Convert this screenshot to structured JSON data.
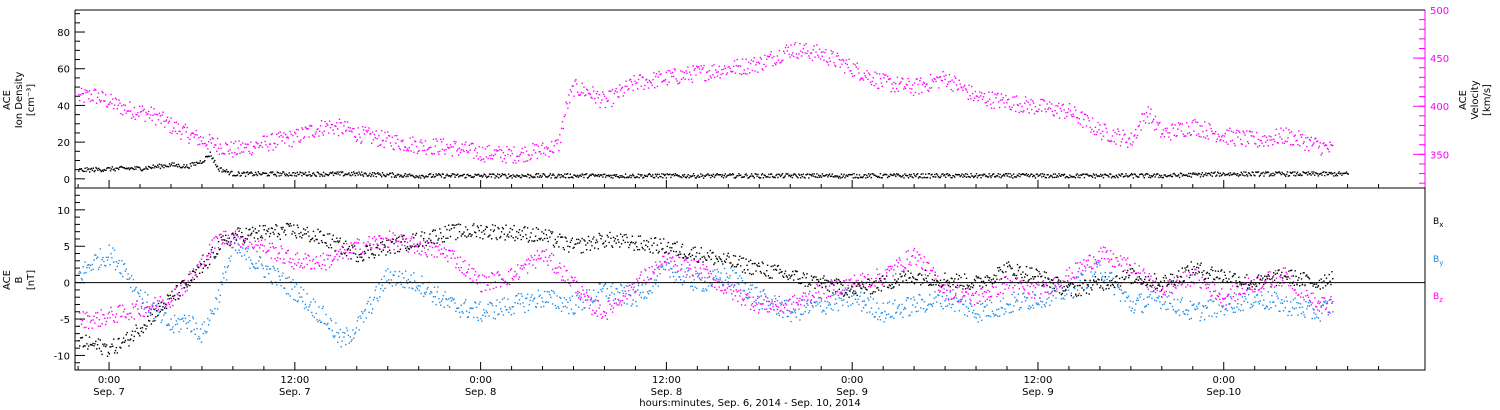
{
  "chart_data": [
    {
      "type": "scatter",
      "panel": "top",
      "ylabel": [
        "ACE",
        "Ion Density",
        "[cm⁻³]"
      ],
      "y2label": [
        "ACE",
        "Velocity",
        "[km/s]"
      ],
      "ylim": [
        -5,
        92
      ],
      "y2lim": [
        315,
        500
      ],
      "yticks": [
        "0",
        "20",
        "40",
        "60",
        "80"
      ],
      "y2ticks": [
        "350",
        "400",
        "450",
        "500"
      ],
      "series": [
        {
          "color": "#000000",
          "axis": "left",
          "x": [
            -2,
            1,
            2,
            3,
            4,
            5,
            6,
            6.5,
            7,
            8,
            9,
            10,
            12,
            16,
            20,
            24,
            28,
            32,
            36,
            40,
            44,
            48,
            52,
            56,
            60,
            64,
            68,
            72,
            76,
            80
          ],
          "y": [
            5,
            6,
            6,
            7,
            8,
            7,
            10,
            14,
            6,
            3,
            3,
            3,
            3,
            3,
            2,
            2,
            2,
            2,
            2,
            2,
            2,
            2,
            2,
            2,
            2,
            2,
            2,
            3,
            3,
            3
          ]
        },
        {
          "color": "#ff00ff",
          "axis": "right",
          "x": [
            -2,
            -1,
            0,
            1,
            2,
            3,
            4,
            5,
            6,
            7,
            8,
            9,
            10,
            12,
            13,
            14,
            15,
            16,
            18,
            20,
            22,
            24,
            26,
            28,
            29,
            29.5,
            30,
            31,
            32,
            34,
            36,
            38,
            40,
            42,
            44,
            46,
            48,
            50,
            52,
            54,
            56,
            58,
            60,
            62,
            64,
            66,
            67,
            68,
            70,
            72,
            74,
            76,
            78,
            79
          ],
          "y": [
            410,
            412,
            405,
            398,
            395,
            390,
            380,
            372,
            365,
            360,
            355,
            358,
            362,
            368,
            375,
            380,
            378,
            372,
            365,
            360,
            358,
            352,
            350,
            355,
            360,
            400,
            420,
            415,
            405,
            425,
            430,
            435,
            440,
            445,
            460,
            455,
            440,
            425,
            420,
            430,
            410,
            405,
            400,
            395,
            375,
            365,
            395,
            372,
            380,
            370,
            365,
            370,
            360,
            355
          ]
        }
      ]
    },
    {
      "type": "scatter",
      "panel": "bottom",
      "ylabel": [
        "ACE",
        "B",
        "[nT]"
      ],
      "ylim": [
        -12,
        13
      ],
      "yticks": [
        "-10",
        "-5",
        "0",
        "5",
        "10"
      ],
      "legend": [
        {
          "label": "B",
          "sub": "x",
          "color": "#000000"
        },
        {
          "label": "B",
          "sub": "y",
          "color": "#1e8ce6"
        },
        {
          "label": "B",
          "sub": "z",
          "color": "#ff00ff"
        }
      ],
      "series": [
        {
          "name": "Bx",
          "color": "#000000",
          "x": [
            -2,
            -1,
            0,
            1,
            2,
            3,
            4,
            5,
            6,
            7,
            8,
            10,
            12,
            14,
            16,
            18,
            20,
            22,
            24,
            26,
            28,
            30,
            32,
            34,
            36,
            38,
            40,
            42,
            44,
            46,
            48,
            50,
            52,
            54,
            56,
            58,
            60,
            62,
            64,
            66,
            68,
            70,
            72,
            74,
            76,
            78,
            79
          ],
          "y": [
            -8,
            -8.5,
            -9,
            -8,
            -6,
            -4,
            -2,
            0,
            2,
            5,
            6.5,
            7,
            7.2,
            6,
            4,
            5,
            6,
            7,
            7.2,
            7,
            6.5,
            5,
            6,
            5.5,
            5,
            4,
            3,
            2,
            1,
            0,
            -1,
            0,
            1,
            0.5,
            0,
            2,
            1,
            -1,
            0,
            1,
            0,
            2,
            1,
            0,
            1,
            0,
            1
          ]
        },
        {
          "name": "By",
          "color": "#1e8ce6",
          "x": [
            -2,
            -1,
            0,
            1,
            2,
            3,
            4,
            5,
            6,
            7,
            8,
            10,
            12,
            14,
            15,
            16,
            18,
            20,
            22,
            24,
            26,
            28,
            30,
            32,
            34,
            36,
            38,
            40,
            42,
            44,
            46,
            48,
            50,
            52,
            54,
            56,
            58,
            60,
            62,
            64,
            66,
            68,
            70,
            72,
            74,
            76,
            78,
            79
          ],
          "y": [
            1,
            3,
            4,
            2,
            -2,
            -4,
            -6,
            -5,
            -7,
            -2,
            5,
            2,
            -1,
            -5,
            -8,
            -6,
            1,
            0,
            -3,
            -4,
            -3,
            -2,
            -3,
            -1,
            -2,
            2,
            0,
            1,
            -2,
            -4,
            -3,
            -2,
            -4,
            -3,
            -2,
            -4,
            -3,
            -2,
            -1,
            2,
            -3,
            -2,
            -4,
            -3,
            -2,
            -3,
            -4,
            -3
          ]
        },
        {
          "name": "Bz",
          "color": "#ff00ff",
          "x": [
            -2,
            -1,
            0,
            1,
            2,
            3,
            4,
            5,
            6,
            7,
            8,
            10,
            12,
            14,
            16,
            18,
            20,
            22,
            24,
            26,
            28,
            30,
            31,
            32,
            34,
            36,
            38,
            40,
            42,
            44,
            46,
            48,
            50,
            52,
            54,
            56,
            58,
            60,
            62,
            64,
            66,
            68,
            70,
            72,
            74,
            76,
            78,
            79
          ],
          "y": [
            -5,
            -5,
            -4.5,
            -4,
            -3.5,
            -3,
            -2,
            0,
            3,
            6,
            6.5,
            5,
            3,
            3,
            5,
            6,
            5,
            4,
            0,
            1,
            4,
            0,
            -3,
            -4,
            0,
            3,
            2,
            -1,
            -3,
            -3,
            -1,
            0,
            1,
            4,
            -1,
            -2,
            0,
            -1,
            1,
            4,
            2,
            -1,
            1,
            -2,
            0,
            1,
            -3,
            -3
          ]
        }
      ]
    }
  ],
  "xaxis": {
    "range_hours": [
      -2.2,
      85
    ],
    "ticks": [
      {
        "hour": 0,
        "time": "0:00",
        "date": "Sep. 7"
      },
      {
        "hour": 12,
        "time": "12:00",
        "date": "Sep. 7"
      },
      {
        "hour": 24,
        "time": "0:00",
        "date": "Sep. 8"
      },
      {
        "hour": 36,
        "time": "12:00",
        "date": "Sep. 8"
      },
      {
        "hour": 48,
        "time": "0:00",
        "date": "Sep. 9"
      },
      {
        "hour": 60,
        "time": "12:00",
        "date": "Sep. 9"
      },
      {
        "hour": 72,
        "time": "0:00",
        "date": "Sep.10"
      }
    ],
    "label": "hours:minutes, Sep.  6, 2014 - Sep. 10, 2014"
  }
}
